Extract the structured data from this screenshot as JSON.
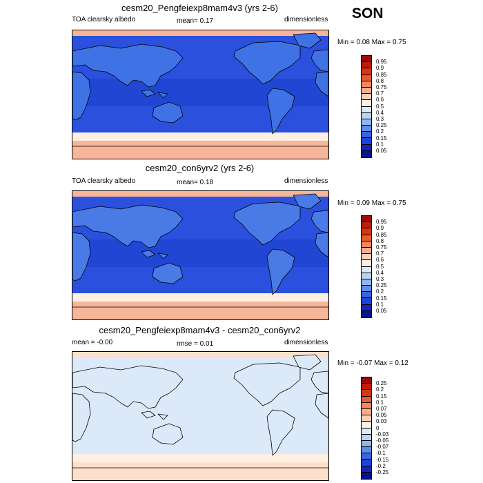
{
  "season": "SON",
  "panels": [
    {
      "title": "cesm20_Pengfeiexp8mam4v3 (yrs 2-6)",
      "left_text": "TOA clearsky albedo",
      "mean_text": "mean=   0.17",
      "units": "dimensionless",
      "minmax": "Min =  0.08 Max =  0.75",
      "labels": [
        "0.95",
        "0.9",
        "0.85",
        "0.8",
        "0.75",
        "0.7",
        "0.6",
        "0.5",
        "0.4",
        "0.3",
        "0.25",
        "0.2",
        "0.15",
        "0.1",
        "0.05"
      ],
      "colors": [
        "#9a0a0a",
        "#c01a0a",
        "#d93512",
        "#ea5a2b",
        "#f5865a",
        "#fbae8e",
        "#fdd0b8",
        "#fff0e4",
        "#dbe9f8",
        "#b9d3f4",
        "#8fb6ee",
        "#5f8ee8",
        "#3766e2",
        "#1d44d8",
        "#1424bc",
        "#08128a"
      ],
      "map": {
        "polar_tint": "#f7b69a",
        "ocean": "#2a50dd",
        "land": "#3f72e4",
        "tropics": "#1d3fcf"
      }
    },
    {
      "title": "cesm20_con6yrv2 (yrs 2-6)",
      "left_text": "TOA clearsky albedo",
      "mean_text": "mean=   0.18",
      "units": "dimensionless",
      "minmax": "Min =  0.09 Max =  0.75",
      "labels": [
        "0.95",
        "0.9",
        "0.85",
        "0.8",
        "0.75",
        "0.7",
        "0.6",
        "0.5",
        "0.4",
        "0.3",
        "0.25",
        "0.2",
        "0.15",
        "0.1",
        "0.05"
      ],
      "colors": [
        "#9a0a0a",
        "#c01a0a",
        "#d93512",
        "#ea5a2b",
        "#f5865a",
        "#fbae8e",
        "#fdd0b8",
        "#fff0e4",
        "#dbe9f8",
        "#b9d3f4",
        "#8fb6ee",
        "#5f8ee8",
        "#3766e2",
        "#1d44d8",
        "#1424bc",
        "#08128a"
      ],
      "map": {
        "polar_tint": "#f7b69a",
        "ocean": "#2a50dd",
        "land": "#4a7ae6",
        "tropics": "#1d3fcf"
      }
    },
    {
      "title": "cesm20_Pengfeiexp8mam4v3 - cesm20_con6yrv2",
      "left_text": "mean =  -0.00",
      "mean_text": "rmse =  0.01",
      "units": "dimensionless",
      "minmax": "Min =  -0.07 Max =  0.12",
      "labels": [
        "0.25",
        "0.2",
        "0.15",
        "0.1",
        "0.07",
        "0.05",
        "0.03",
        "0",
        "-0.03",
        "-0.05",
        "-0.07",
        "-0.1",
        "-0.15",
        "-0.2",
        "-0.25"
      ],
      "colors": [
        "#9a0a0a",
        "#c01a0a",
        "#d93512",
        "#ea5a2b",
        "#f5865a",
        "#fbae8e",
        "#fdd0b8",
        "#fff0e4",
        "#dbe9f8",
        "#b9d3f4",
        "#8fb6ee",
        "#5f8ee8",
        "#3766e2",
        "#1d44d8",
        "#1424bc",
        "#08128a"
      ],
      "map": {
        "polar_tint": "#fde0cc",
        "ocean": "#dbe9f8",
        "land": "#dbe9f8",
        "tropics": "#dbe9f8"
      }
    }
  ]
}
